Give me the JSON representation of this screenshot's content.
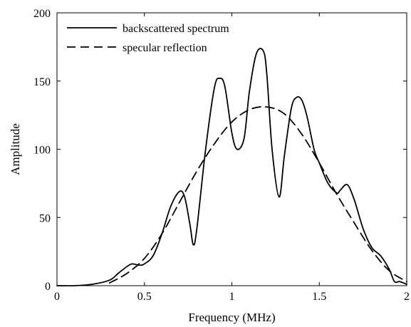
{
  "chart_data": {
    "type": "line",
    "xlabel": "Frequency (MHz)",
    "ylabel": "Amplitude",
    "xlim": [
      0,
      2
    ],
    "ylim": [
      0,
      200
    ],
    "xticks": [
      0,
      0.5,
      1,
      1.5,
      2
    ],
    "xtick_labels": [
      "0",
      "0.5",
      "1",
      "1.5",
      "2"
    ],
    "yticks": [
      0,
      50,
      100,
      150,
      200
    ],
    "ytick_labels": [
      "0",
      "50",
      "100",
      "150",
      "200"
    ],
    "grid": false,
    "legend_position": "top-left",
    "series": [
      {
        "name": "backscattered spectrum",
        "style": "solid",
        "color": "#000000",
        "x": [
          0,
          0.1,
          0.2,
          0.3,
          0.35,
          0.4,
          0.43,
          0.47,
          0.5,
          0.55,
          0.6,
          0.65,
          0.7,
          0.73,
          0.76,
          0.78,
          0.8,
          0.85,
          0.9,
          0.93,
          0.96,
          1.0,
          1.03,
          1.07,
          1.1,
          1.14,
          1.18,
          1.2,
          1.23,
          1.27,
          1.3,
          1.34,
          1.37,
          1.4,
          1.43,
          1.47,
          1.5,
          1.55,
          1.6,
          1.62,
          1.66,
          1.7,
          1.75,
          1.8,
          1.85,
          1.9,
          1.93,
          1.96,
          2.0
        ],
        "y": [
          0,
          0,
          1,
          4,
          9,
          14,
          16,
          15,
          16,
          22,
          38,
          58,
          69,
          65,
          45,
          30,
          42,
          100,
          145,
          152,
          146,
          112,
          100,
          108,
          142,
          170,
          172,
          155,
          100,
          65,
          95,
          130,
          138,
          136,
          124,
          100,
          90,
          75,
          68,
          70,
          74,
          63,
          42,
          28,
          22,
          12,
          3,
          3,
          1
        ]
      },
      {
        "name": "specular reflection",
        "style": "dashed",
        "color": "#000000",
        "x": [
          0.3,
          0.4,
          0.5,
          0.6,
          0.7,
          0.8,
          0.9,
          1.0,
          1.1,
          1.2,
          1.3,
          1.4,
          1.5,
          1.6,
          1.7,
          1.8,
          1.9,
          2.0
        ],
        "y": [
          2,
          9,
          20,
          38,
          61,
          84,
          104,
          120,
          129,
          131,
          126,
          111,
          90,
          67,
          46,
          26,
          11,
          3
        ]
      }
    ]
  }
}
